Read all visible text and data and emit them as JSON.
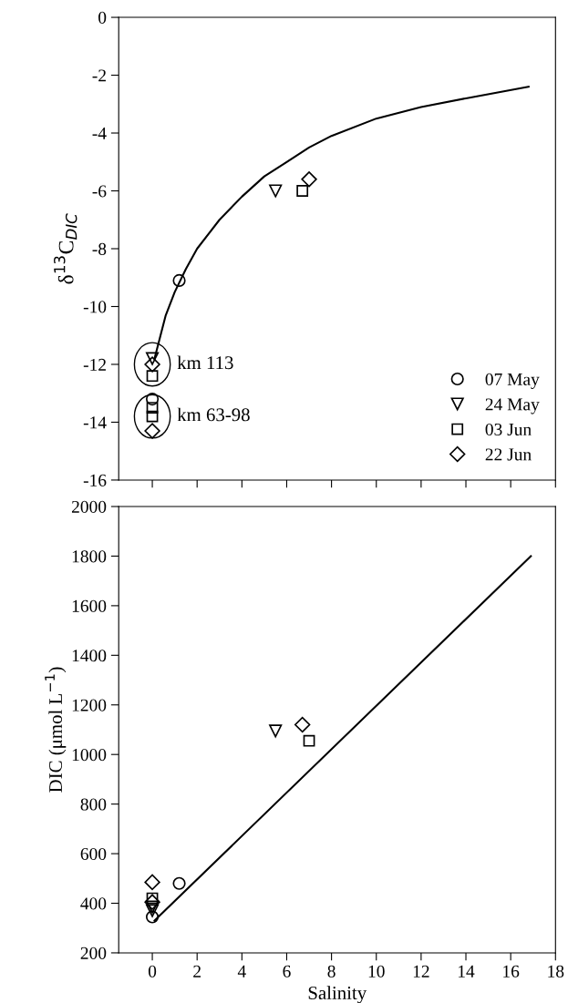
{
  "chart_data": [
    {
      "type": "scatter",
      "ylabel": "δ$^{13}$C$_{DIC}$",
      "xlim": [
        -1.5,
        18
      ],
      "xticks": [
        {
          "value": 0,
          "label": null
        },
        {
          "value": 2,
          "label": null
        },
        {
          "value": 4,
          "label": null
        },
        {
          "value": 6,
          "label": null
        },
        {
          "value": 8,
          "label": null
        },
        {
          "value": 10,
          "label": null
        },
        {
          "value": 12,
          "label": null
        },
        {
          "value": 14,
          "label": null
        },
        {
          "value": 16,
          "label": null
        },
        {
          "value": 18,
          "label": null
        }
      ],
      "ylim": [
        -16,
        0
      ],
      "yticks": [
        -16,
        -14,
        -12,
        -10,
        -8,
        -6,
        -4,
        -2,
        0
      ],
      "tick_labels": "y",
      "legend": "bottom right",
      "grid": false,
      "annotations": [
        {
          "text": "km 113",
          "x": 0,
          "y": -12
        },
        {
          "text": "km 63-98",
          "x": 0,
          "y": -13.8
        }
      ],
      "series": [
        {
          "type": "line",
          "color": "#000000",
          "marker": "none",
          "line_style": "solid",
          "x": [
            0.1,
            0.2,
            0.6,
            1,
            1.5,
            2,
            3,
            4,
            5,
            6,
            7,
            8,
            10,
            12,
            14,
            16.8
          ],
          "values": [
            -11.8,
            -11.5,
            -10.3,
            -9.5,
            -8.7,
            -8.0,
            -7.0,
            -6.2,
            -5.5,
            -5.0,
            -4.5,
            -4.1,
            -3.5,
            -3.1,
            -2.8,
            -2.4
          ]
        },
        {
          "name": "07 May",
          "color": "#000000",
          "marker": "circle",
          "x": [
            0,
            1.2
          ],
          "values": [
            -13.2,
            -9.1
          ]
        },
        {
          "name": "24 May",
          "color": "#000000",
          "marker": "triangle",
          "x": [
            0,
            5.5
          ],
          "values": [
            -11.8,
            -6.0
          ]
        },
        {
          "name": "03 Jun",
          "color": "#000000",
          "marker": "square",
          "x": [
            0,
            0,
            0,
            6.7
          ],
          "values": [
            -12.4,
            -13.5,
            -13.8,
            -6.0
          ]
        },
        {
          "name": "22 Jun",
          "color": "#000000",
          "marker": "diamond",
          "x": [
            0,
            0,
            7.0
          ],
          "values": [
            -12.0,
            -14.3,
            -5.6
          ]
        }
      ]
    },
    {
      "type": "scatter",
      "xlabel": "Salinity",
      "ylabel": "DIC (μmol L$^{−1}$)",
      "xlim": [
        -1.5,
        18
      ],
      "xticks": [
        0,
        2,
        4,
        6,
        8,
        10,
        12,
        14,
        16,
        18
      ],
      "ylim": [
        200,
        2000
      ],
      "yticks": [
        200,
        400,
        600,
        800,
        1000,
        1200,
        1400,
        1600,
        1800,
        2000
      ],
      "grid": false,
      "series": [
        {
          "type": "line",
          "color": "#000000",
          "marker": "none",
          "line_style": "solid",
          "x": [
            0.1,
            16.9
          ],
          "values": [
            330,
            1800
          ]
        },
        {
          "color": "#000000",
          "marker": "circle",
          "x": [
            0,
            1.2
          ],
          "values": [
            345,
            480
          ]
        },
        {
          "color": "#000000",
          "marker": "triangle",
          "x": [
            0,
            0,
            5.5
          ],
          "values": [
            370,
            385,
            1095
          ]
        },
        {
          "color": "#000000",
          "marker": "square",
          "x": [
            0,
            7.0
          ],
          "values": [
            420,
            1055
          ]
        },
        {
          "color": "#000000",
          "marker": "diamond",
          "x": [
            0,
            0,
            6.7
          ],
          "values": [
            485,
            405,
            1120
          ]
        }
      ]
    }
  ]
}
